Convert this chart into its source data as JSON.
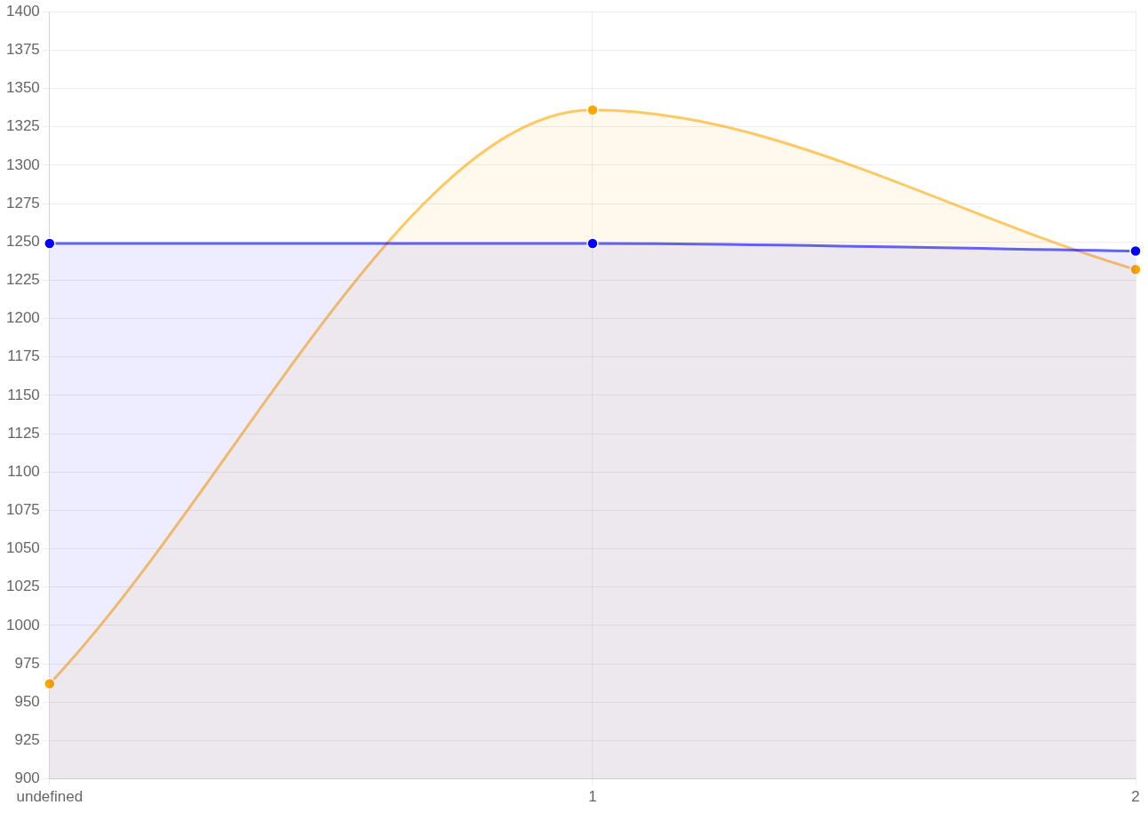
{
  "chart_data": {
    "type": "area",
    "categories": [
      "undefined",
      "1",
      "2"
    ],
    "series": [
      {
        "color": "#0000ff",
        "values": [
          1249,
          1249,
          1244
        ]
      },
      {
        "color": "#ffa500",
        "values": [
          962,
          1336,
          1232
        ]
      }
    ],
    "ylim": [
      900,
      1400
    ],
    "yticks": [
      900,
      925,
      950,
      975,
      1000,
      1025,
      1050,
      1075,
      1100,
      1125,
      1150,
      1175,
      1200,
      1225,
      1250,
      1275,
      1300,
      1325,
      1350,
      1375,
      1400
    ],
    "grid": true,
    "legend": false,
    "marker": "circle"
  }
}
